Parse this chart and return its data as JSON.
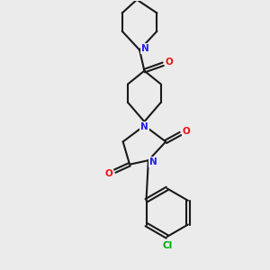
{
  "background_color": "#ebebeb",
  "bond_color": "#1a1a1a",
  "N_color": "#2020ee",
  "O_color": "#ee1010",
  "Cl_color": "#00aa00",
  "bond_width": 1.5,
  "figsize": [
    3.0,
    3.0
  ],
  "dpi": 100,
  "xlim": [
    0,
    10
  ],
  "ylim": [
    0,
    10
  ]
}
